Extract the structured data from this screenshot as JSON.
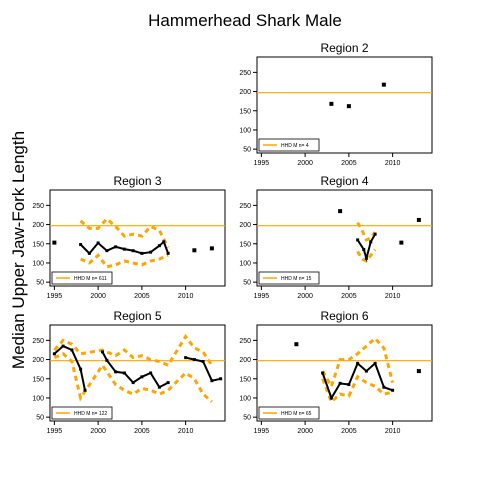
{
  "title": "Hammerhead Shark Male",
  "ylabel": "Median Upper Jaw-Fork Length",
  "colors": {
    "trend": "#000000",
    "band": "#FFA500",
    "reference": "#FFA500"
  },
  "chart_data": [
    {
      "type": "line",
      "panel": "Region 2",
      "title": "Region 2",
      "legend": "HHD M n= 4",
      "xlim": [
        1994.5,
        2014.5
      ],
      "ylim": [
        40,
        290
      ],
      "xticks": [
        1995,
        2000,
        2005,
        2010
      ],
      "yticks": [
        50,
        100,
        150,
        200,
        250
      ],
      "reference_y": 197,
      "points": [
        [
          2003,
          168
        ],
        [
          2005,
          162
        ],
        [
          2009,
          218
        ]
      ],
      "median_line": [],
      "band_upper": [],
      "band_lower": []
    },
    {
      "type": "line",
      "panel": "Region 3",
      "title": "Region 3",
      "legend": "HHD M n= 611",
      "xlim": [
        1994.5,
        2014.5
      ],
      "ylim": [
        40,
        290
      ],
      "xticks": [
        1995,
        2000,
        2005,
        2010
      ],
      "yticks": [
        50,
        100,
        150,
        200,
        250
      ],
      "reference_y": 197,
      "points": [
        [
          1995,
          153
        ],
        [
          2011,
          133
        ],
        [
          2013,
          138
        ]
      ],
      "median_line": [
        [
          1998,
          148
        ],
        [
          1999,
          125
        ],
        [
          2000,
          152
        ],
        [
          2001,
          132
        ],
        [
          2002,
          142
        ],
        [
          2003,
          136
        ],
        [
          2004,
          132
        ],
        [
          2005,
          125
        ],
        [
          2006,
          128
        ],
        [
          2007,
          145
        ],
        [
          2007.5,
          155
        ],
        [
          2008,
          125
        ]
      ],
      "band_upper": [
        [
          1998,
          210
        ],
        [
          1999,
          190
        ],
        [
          2000,
          190
        ],
        [
          2001,
          215
        ],
        [
          2002,
          195
        ],
        [
          2003,
          170
        ],
        [
          2004,
          175
        ],
        [
          2005,
          170
        ],
        [
          2006,
          195
        ],
        [
          2007,
          185
        ],
        [
          2008,
          140
        ]
      ],
      "band_lower": [
        [
          1998,
          110
        ],
        [
          1999,
          100
        ],
        [
          2000,
          120
        ],
        [
          2001,
          90
        ],
        [
          2002,
          95
        ],
        [
          2003,
          105
        ],
        [
          2004,
          100
        ],
        [
          2005,
          95
        ],
        [
          2006,
          105
        ],
        [
          2007,
          110
        ],
        [
          2008,
          120
        ]
      ]
    },
    {
      "type": "line",
      "panel": "Region 4",
      "title": "Region 4",
      "legend": "HHD M n= 15",
      "xlim": [
        1994.5,
        2014.5
      ],
      "ylim": [
        40,
        290
      ],
      "xticks": [
        1995,
        2000,
        2005,
        2010
      ],
      "yticks": [
        50,
        100,
        150,
        200,
        250
      ],
      "reference_y": 197,
      "points": [
        [
          2004,
          235
        ],
        [
          2011,
          153
        ],
        [
          2013,
          212
        ]
      ],
      "median_line": [
        [
          2006,
          160
        ],
        [
          2006.7,
          135
        ],
        [
          2007,
          112
        ],
        [
          2007.5,
          155
        ],
        [
          2008,
          175
        ]
      ],
      "band_upper": [
        [
          2006,
          205
        ],
        [
          2006.5,
          185
        ],
        [
          2007,
          160
        ],
        [
          2007.5,
          165
        ],
        [
          2008,
          180
        ]
      ],
      "band_lower": [
        [
          2006,
          130
        ],
        [
          2006.5,
          110
        ],
        [
          2007,
          105
        ],
        [
          2007.5,
          120
        ],
        [
          2008,
          135
        ]
      ]
    },
    {
      "type": "line",
      "panel": "Region 5",
      "title": "Region 5",
      "legend": "HHD M n= 122",
      "xlim": [
        1994.5,
        2014.5
      ],
      "ylim": [
        40,
        290
      ],
      "xticks": [
        1995,
        2000,
        2005,
        2010
      ],
      "yticks": [
        50,
        100,
        150,
        200,
        250
      ],
      "reference_y": 197,
      "points": [],
      "median_line": [
        [
          1995,
          215
        ],
        [
          1996,
          235
        ],
        [
          1997,
          225
        ],
        [
          1998,
          175
        ],
        [
          1998.5,
          120
        ]
      ],
      "median_line_2": [
        [
          2000.5,
          220
        ],
        [
          2001,
          198
        ],
        [
          2002,
          168
        ],
        [
          2003,
          165
        ],
        [
          2004,
          140
        ],
        [
          2005,
          155
        ],
        [
          2006,
          165
        ],
        [
          2007,
          128
        ],
        [
          2008,
          140
        ]
      ],
      "median_line_3": [
        [
          2010,
          205
        ],
        [
          2011,
          200
        ],
        [
          2012,
          195
        ],
        [
          2013,
          145
        ],
        [
          2014,
          150
        ]
      ],
      "band_upper": [
        [
          1995,
          225
        ],
        [
          1996,
          250
        ],
        [
          1997,
          240
        ],
        [
          1998,
          215
        ],
        [
          2000.5,
          225
        ],
        [
          2002,
          210
        ],
        [
          2003,
          225
        ],
        [
          2004,
          205
        ],
        [
          2005,
          210
        ],
        [
          2006,
          200
        ],
        [
          2007,
          195
        ],
        [
          2008,
          185
        ],
        [
          2010,
          260
        ],
        [
          2011,
          230
        ],
        [
          2012,
          220
        ],
        [
          2013,
          185
        ]
      ],
      "band_lower": [
        [
          1995,
          205
        ],
        [
          1996,
          215
        ],
        [
          1997,
          195
        ],
        [
          1998,
          100
        ],
        [
          2000.5,
          185
        ],
        [
          2002,
          135
        ],
        [
          2003,
          120
        ],
        [
          2004,
          110
        ],
        [
          2005,
          125
        ],
        [
          2006,
          120
        ],
        [
          2007,
          110
        ],
        [
          2008,
          120
        ],
        [
          2010,
          165
        ],
        [
          2011,
          150
        ],
        [
          2012,
          110
        ],
        [
          2013,
          90
        ]
      ]
    },
    {
      "type": "line",
      "panel": "Region 6",
      "title": "Region 6",
      "legend": "HHD M n= 65",
      "xlim": [
        1994.5,
        2014.5
      ],
      "ylim": [
        40,
        290
      ],
      "xticks": [
        1995,
        2000,
        2005,
        2010
      ],
      "yticks": [
        50,
        100,
        150,
        200,
        250
      ],
      "reference_y": 197,
      "points": [
        [
          1999,
          240
        ],
        [
          2013,
          170
        ]
      ],
      "median_line": [
        [
          2002,
          165
        ],
        [
          2003,
          100
        ],
        [
          2004,
          138
        ],
        [
          2005,
          135
        ],
        [
          2006,
          190
        ],
        [
          2007,
          170
        ],
        [
          2008,
          190
        ],
        [
          2009,
          128
        ],
        [
          2010,
          120
        ]
      ],
      "band_upper": [
        [
          2002,
          170
        ],
        [
          2003,
          130
        ],
        [
          2004,
          200
        ],
        [
          2005,
          200
        ],
        [
          2006,
          215
        ],
        [
          2007,
          235
        ],
        [
          2008,
          255
        ],
        [
          2009,
          230
        ],
        [
          2010,
          140
        ]
      ],
      "band_lower": [
        [
          2002,
          150
        ],
        [
          2003,
          90
        ],
        [
          2004,
          110
        ],
        [
          2005,
          105
        ],
        [
          2006,
          155
        ],
        [
          2007,
          140
        ],
        [
          2008,
          130
        ],
        [
          2009,
          110
        ],
        [
          2010,
          115
        ]
      ]
    }
  ]
}
